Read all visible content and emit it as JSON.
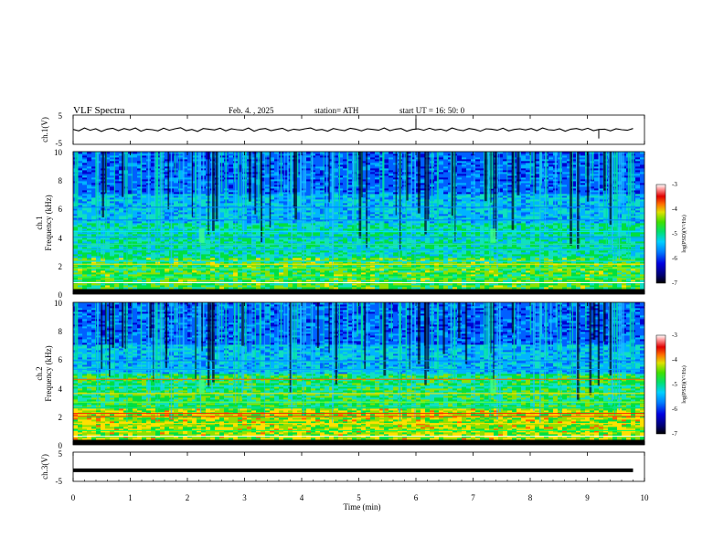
{
  "header": {
    "title": "VLF  Spectra",
    "date": "Feb. 4.  , 2025",
    "station": "station= ATH",
    "start_ut": "start  UT  =   16: 50: 0"
  },
  "chart_data": [
    {
      "type": "line",
      "panel": "ch1-waveform",
      "ylabel": "ch.1(V)",
      "ylim": [
        -5,
        5
      ],
      "yticks": [
        "5",
        "-5"
      ],
      "series": [
        {
          "values": [
            0.1,
            -0.4,
            0.6,
            -0.2,
            0.3,
            -0.6,
            0.2,
            0.5,
            -0.3,
            0.4,
            -0.1,
            0.6,
            -0.5,
            0.2,
            0.0,
            -0.4,
            0.5,
            -0.2,
            0.3,
            0.7,
            -0.3,
            0.1,
            -0.6,
            0.4,
            0.2,
            -0.1,
            0.5,
            -0.4,
            0.3,
            0.0,
            -0.2,
            0.6,
            -0.5,
            0.2,
            0.4,
            -0.3,
            0.1,
            0.5,
            -0.4,
            0.2,
            -0.1,
            0.3,
            0.6,
            -0.2,
            0.1,
            -0.5,
            0.4,
            0.0,
            -0.3,
            0.5,
            0.2,
            -0.4,
            0.3,
            0.1,
            -0.2,
            0.6,
            -0.3,
            0.2,
            0.4,
            -0.5,
            0.1,
            0.3,
            -0.2,
            0.5,
            -0.1,
            0.2,
            -0.4,
            0.6,
            0.0,
            -0.3,
            0.4,
            0.1,
            -0.5,
            0.3,
            0.2,
            -0.2,
            0.5,
            -0.4,
            0.1,
            0.3,
            -0.1,
            0.4,
            -0.3,
            0.6,
            0.0,
            -0.2,
            0.3,
            -0.5,
            0.2,
            0.4,
            -0.1,
            0.5,
            -0.3,
            0.1,
            0.2,
            -0.4,
            0.3,
            0.0,
            -0.2,
            0.4
          ]
        }
      ],
      "spikes": [
        {
          "x": 6.0,
          "y": 3.8
        },
        {
          "x": 9.2,
          "y": -3.0
        }
      ]
    },
    {
      "type": "heatmap",
      "panel": "ch1-spectrogram",
      "ylabel_channel": "ch.1",
      "ylabel": "Frequency  (kHz)",
      "ylim": [
        0,
        10
      ],
      "yticks": [
        "10",
        "8",
        "6",
        "4",
        "2",
        "0"
      ],
      "colorbar": {
        "label": "log(PSD)(V²/Hz)",
        "range": [
          -7,
          -3
        ],
        "ticks": [
          "-3",
          "-4",
          "-5",
          "-6",
          "-7"
        ]
      }
    },
    {
      "type": "heatmap",
      "panel": "ch2-spectrogram",
      "ylabel_channel": "ch.2",
      "ylabel": "Frequency  (kHz)",
      "ylim": [
        0,
        10
      ],
      "yticks": [
        "10",
        "8",
        "6",
        "4",
        "2",
        "0"
      ],
      "colorbar": {
        "label": "log(PSD)(V²/Hz)",
        "range": [
          -7,
          -3
        ],
        "ticks": [
          "-3",
          "-4",
          "-5",
          "-6",
          "-7"
        ]
      }
    },
    {
      "type": "line",
      "panel": "ch3-waveform",
      "ylabel": "ch.3(V)",
      "ylim": [
        -5,
        5
      ],
      "yticks": [
        "5",
        "-5"
      ],
      "series": [
        {
          "x": [
            0.0,
            9.8
          ],
          "values": [
            -1.2,
            -1.2
          ]
        }
      ]
    }
  ],
  "x_axis": {
    "xlabel": "Time  (min)",
    "xlim": [
      0,
      10
    ],
    "ticks": [
      "0",
      "1",
      "2",
      "3",
      "4",
      "5",
      "6",
      "7",
      "8",
      "9",
      "10"
    ]
  },
  "colors": {
    "colormap": [
      "#000000",
      "#000060",
      "#0000d0",
      "#0060ff",
      "#00b4ff",
      "#10e0c0",
      "#00e040",
      "#90e000",
      "#ffe000",
      "#ff6000",
      "#e00000",
      "#ff8080",
      "#ffffff"
    ],
    "axis": "#000000",
    "trace": "#000000"
  }
}
